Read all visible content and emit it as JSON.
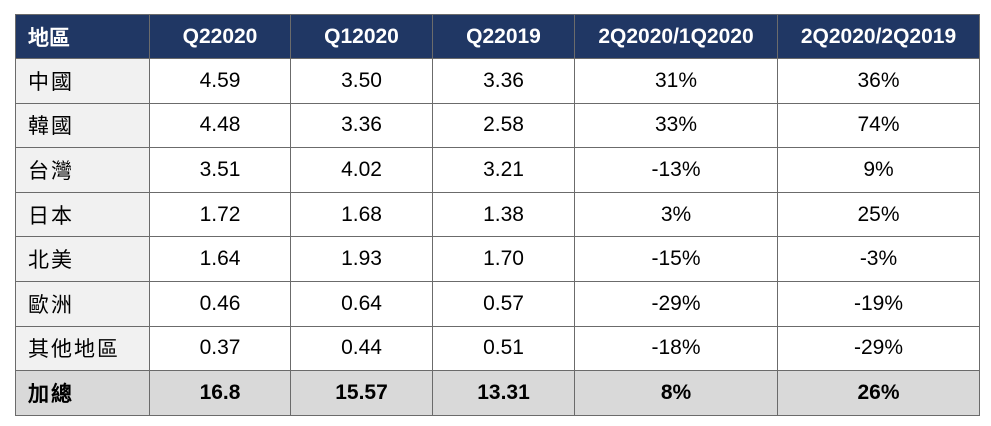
{
  "table": {
    "headers": [
      "地區",
      "Q22020",
      "Q12020",
      "Q22019",
      "2Q2020/1Q2020",
      "2Q2020/2Q2019"
    ],
    "rows": [
      {
        "region": "中國",
        "q2_2020": "4.59",
        "q1_2020": "3.50",
        "q2_2019": "3.36",
        "qoq": "31%",
        "yoy": "36%"
      },
      {
        "region": "韓國",
        "q2_2020": "4.48",
        "q1_2020": "3.36",
        "q2_2019": "2.58",
        "qoq": "33%",
        "yoy": "74%"
      },
      {
        "region": "台灣",
        "q2_2020": "3.51",
        "q1_2020": "4.02",
        "q2_2019": "3.21",
        "qoq": "-13%",
        "yoy": "9%"
      },
      {
        "region": "日本",
        "q2_2020": "1.72",
        "q1_2020": "1.68",
        "q2_2019": "1.38",
        "qoq": "3%",
        "yoy": "25%"
      },
      {
        "region": "北美",
        "q2_2020": "1.64",
        "q1_2020": "1.93",
        "q2_2019": "1.70",
        "qoq": "-15%",
        "yoy": "-3%"
      },
      {
        "region": "歐洲",
        "q2_2020": "0.46",
        "q1_2020": "0.64",
        "q2_2019": "0.57",
        "qoq": "-29%",
        "yoy": "-19%"
      },
      {
        "region": "其他地區",
        "q2_2020": "0.37",
        "q1_2020": "0.44",
        "q2_2019": "0.51",
        "qoq": "-18%",
        "yoy": "-29%"
      }
    ],
    "total": {
      "region": "加總",
      "q2_2020": "16.8",
      "q1_2020": "15.57",
      "q2_2019": "13.31",
      "qoq": "8%",
      "yoy": "26%"
    }
  },
  "colors": {
    "header_bg": "#203764",
    "header_text": "#ffffff",
    "region_col_bg": "#f1f1f1",
    "total_row_bg": "#d9d9d9",
    "border": "#6b6b6b"
  }
}
